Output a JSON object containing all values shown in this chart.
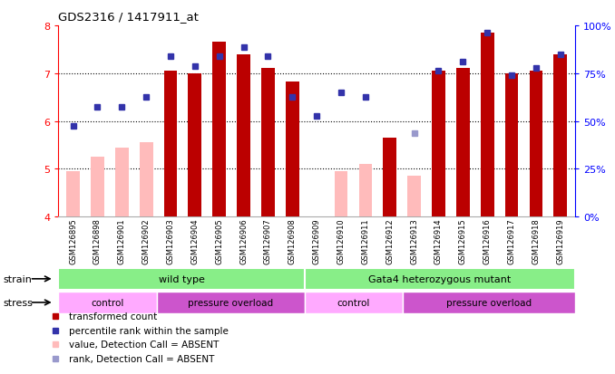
{
  "title": "GDS2316 / 1417911_at",
  "samples": [
    "GSM126895",
    "GSM126898",
    "GSM126901",
    "GSM126902",
    "GSM126903",
    "GSM126904",
    "GSM126905",
    "GSM126906",
    "GSM126907",
    "GSM126908",
    "GSM126909",
    "GSM126910",
    "GSM126911",
    "GSM126912",
    "GSM126913",
    "GSM126914",
    "GSM126915",
    "GSM126916",
    "GSM126917",
    "GSM126918",
    "GSM126919"
  ],
  "bar_values": [
    null,
    null,
    null,
    null,
    7.05,
    7.0,
    7.65,
    7.4,
    7.1,
    6.82,
    null,
    null,
    null,
    5.65,
    null,
    7.05,
    7.1,
    7.85,
    7.0,
    7.05,
    7.4
  ],
  "absent_bar_values": [
    4.95,
    5.25,
    5.45,
    5.55,
    null,
    null,
    null,
    null,
    null,
    null,
    null,
    4.95,
    5.1,
    null,
    4.85,
    null,
    null,
    null,
    null,
    null,
    null
  ],
  "rank_values": [
    5.9,
    6.3,
    6.3,
    6.5,
    7.35,
    7.15,
    7.35,
    7.55,
    7.35,
    6.5,
    6.1,
    6.6,
    6.5,
    null,
    null,
    7.05,
    7.25,
    7.85,
    6.95,
    7.1,
    7.4
  ],
  "absent_rank_values": [
    null,
    null,
    null,
    null,
    null,
    null,
    null,
    null,
    null,
    null,
    null,
    null,
    null,
    null,
    5.75,
    null,
    null,
    null,
    null,
    null,
    null
  ],
  "bar_color": "#bb0000",
  "absent_bar_color": "#ffbbbb",
  "rank_color": "#3333aa",
  "absent_rank_color": "#9999cc",
  "ylim": [
    4,
    8
  ],
  "y2lim": [
    0,
    100
  ],
  "yticks": [
    4,
    5,
    6,
    7,
    8
  ],
  "y2ticks": [
    0,
    25,
    50,
    75,
    100
  ],
  "strain_color": "#88ee88",
  "stress_color_control": "#ffaaff",
  "stress_color_overload": "#cc55cc",
  "legend_items": [
    "transformed count",
    "percentile rank within the sample",
    "value, Detection Call = ABSENT",
    "rank, Detection Call = ABSENT"
  ],
  "legend_colors": [
    "#bb0000",
    "#3333aa",
    "#ffbbbb",
    "#9999cc"
  ],
  "bar_width": 0.55
}
